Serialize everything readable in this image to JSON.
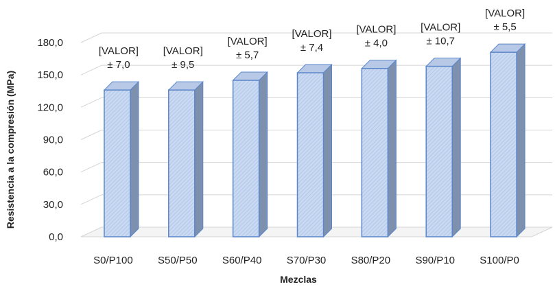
{
  "chart_data": {
    "type": "bar",
    "style": "3d-column",
    "title": "",
    "xlabel": "Mezclas",
    "ylabel": "Resistencia a la compresión (MPa)",
    "ylim": [
      0,
      180
    ],
    "yticks": [
      "0,0",
      "30,0",
      "60,0",
      "90,0",
      "120,0",
      "150,0",
      "180,0"
    ],
    "grid": true,
    "legend": "none",
    "categories": [
      "S0/P100",
      "S50/P50",
      "S60/P40",
      "S70/P30",
      "S80/P20",
      "S90/P10",
      "S100/P0"
    ],
    "values": [
      136,
      136,
      145,
      152,
      156,
      158,
      171
    ],
    "label_top": "[VALOR]",
    "errors": [
      "± 7,0",
      "± 9,5",
      "± 5,7",
      "± 7,4",
      "± 4,0",
      "± 10,7",
      "± 5,5"
    ],
    "colors": {
      "bar_front": "#c9d9f2",
      "bar_hatch": "#a9c0e6",
      "bar_side": "#7d90ad",
      "bar_top": "#b7c9e6",
      "bar_edge": "#5b86c9",
      "grid": "#d4d4d4"
    }
  }
}
